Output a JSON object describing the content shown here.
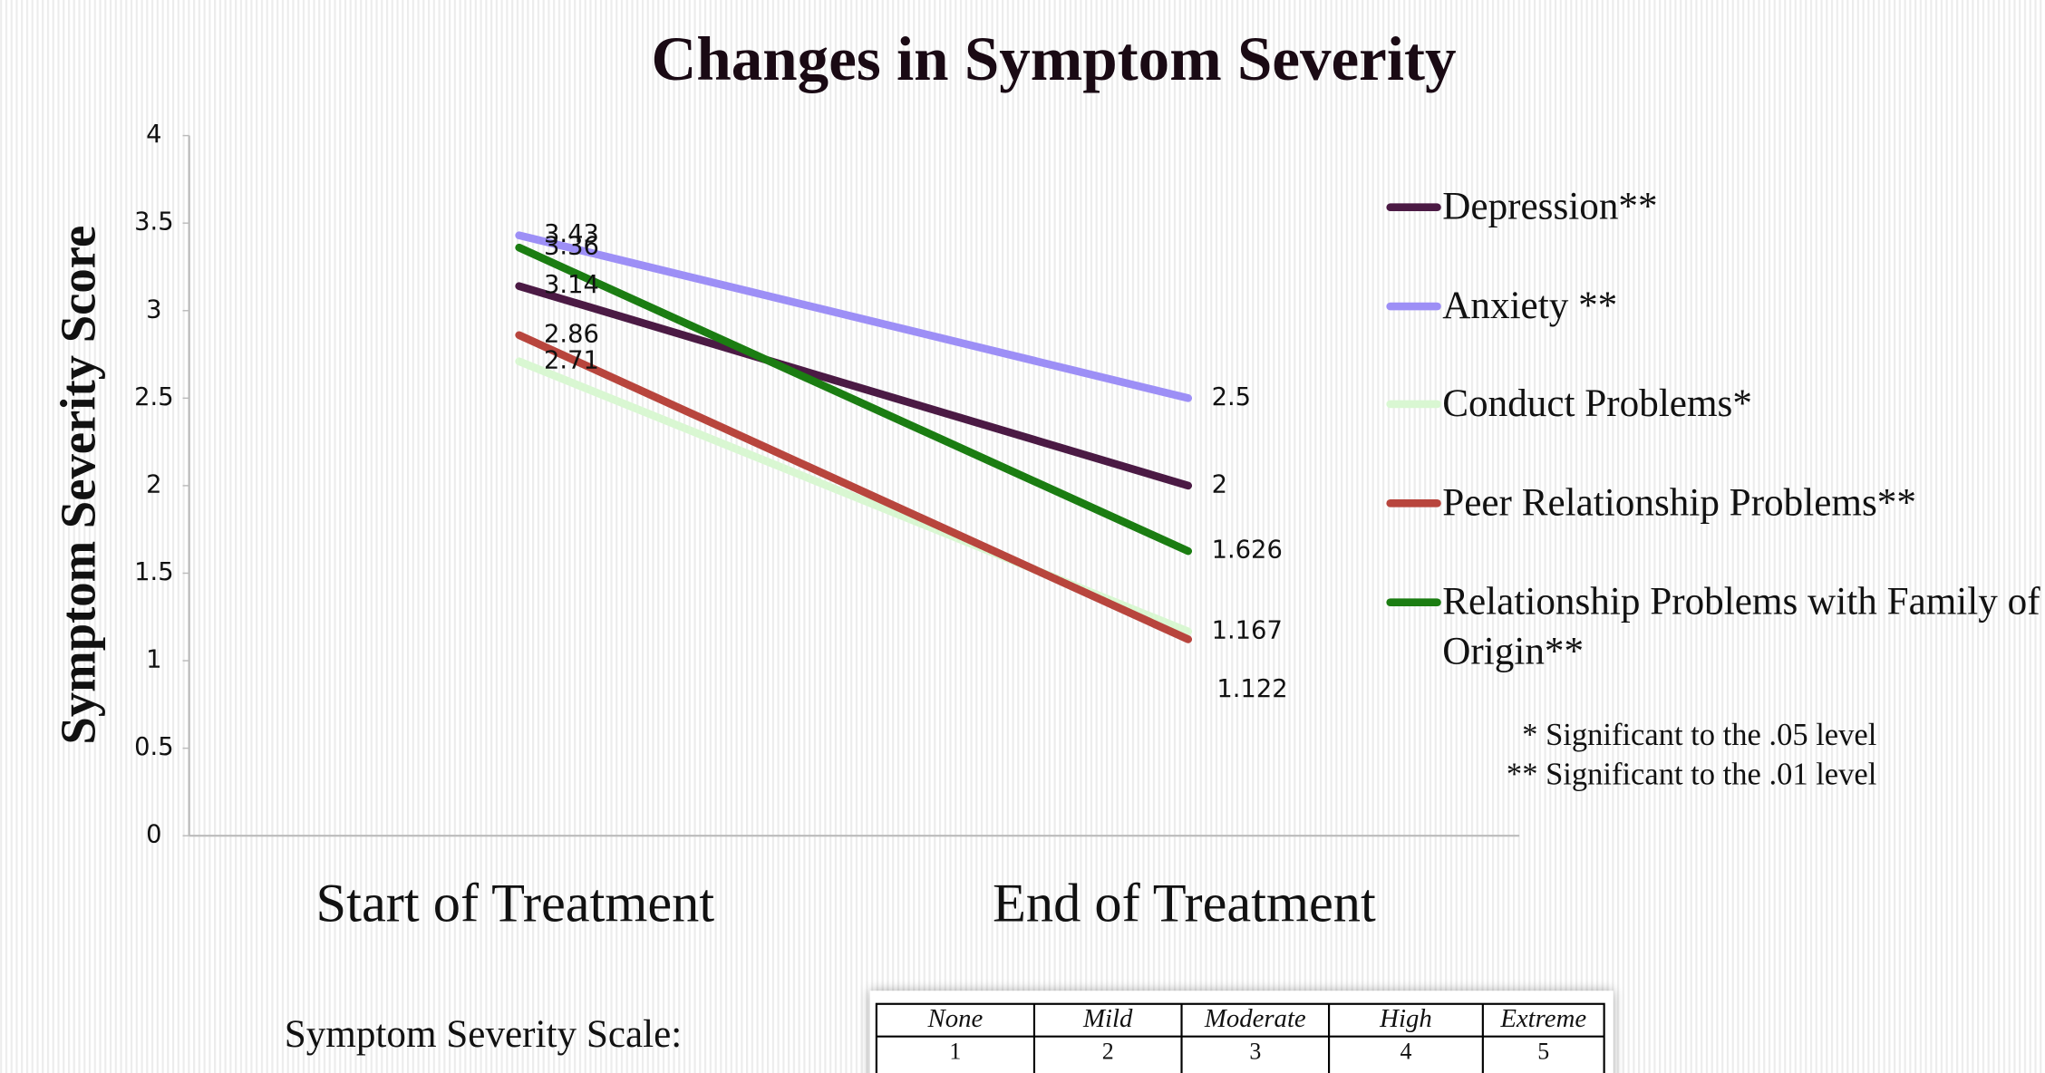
{
  "chart_data": {
    "type": "line",
    "title": "Changes in Symptom Severity",
    "y_label": "Symptom Severity Score",
    "categories": [
      "Start of Treatment",
      "End of Treatment"
    ],
    "series": [
      {
        "name": "Depression**",
        "color": "#4b1a44",
        "values": [
          3.14,
          2
        ]
      },
      {
        "name": "Anxiety **",
        "color": "#9d8ff6",
        "values": [
          3.43,
          2.5
        ]
      },
      {
        "name": "Conduct Problems*",
        "color": "#d9f7d2",
        "values": [
          2.71,
          1.167
        ]
      },
      {
        "name": "Peer Relationship Problems**",
        "color": "#b8453d",
        "values": [
          2.86,
          1.122
        ]
      },
      {
        "name": "Relationship Problems with Family of Origin**",
        "color": "#1b7d12",
        "values": [
          3.36,
          1.626
        ]
      }
    ],
    "ylim": [
      0,
      4
    ],
    "yticks": [
      0,
      0.5,
      1,
      1.5,
      2,
      2.5,
      3,
      3.5,
      4
    ],
    "legend": "right",
    "notes": [
      "* Significant to the .05 level",
      "** Significant to the .01 level"
    ]
  },
  "scale": {
    "title": "Symptom Severity Scale:",
    "headers": [
      "None",
      "Mild",
      "Moderate",
      "High",
      "Extreme"
    ],
    "values": [
      1,
      2,
      3,
      4,
      5
    ]
  }
}
